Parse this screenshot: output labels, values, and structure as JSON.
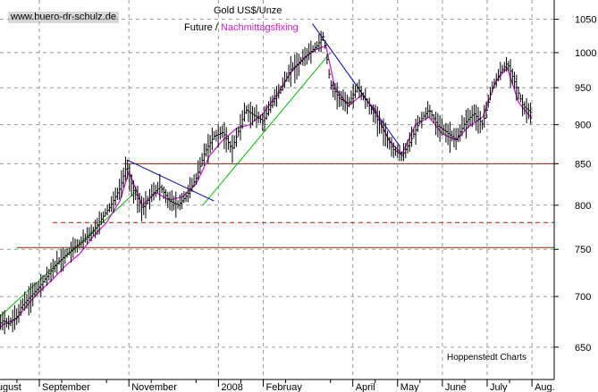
{
  "header": {
    "watermark": "www.buero-dr-schulz.de",
    "title": "Gold US$/Unze",
    "subtitle_part1": "Future /",
    "subtitle_part2": "Nachmittagsfixing"
  },
  "footer": {
    "credit": "Hoppenstedt Charts"
  },
  "colors": {
    "future": "#000000",
    "fixing": "#d020d0",
    "support": "#e00000",
    "uptrend": "#00c000",
    "downtrend": "#0000c0",
    "grid": "#999999"
  },
  "chart_data": {
    "type": "line",
    "title": "Gold US$/Unze",
    "subtitle": "Future / Nachmittagsfixing",
    "y_scale": "log",
    "ylim": [
      620,
      1080
    ],
    "y_ticks": [
      650,
      700,
      750,
      800,
      850,
      900,
      950,
      1000,
      1050
    ],
    "x_ticks": [
      {
        "label": "ugust",
        "pos": 0.0
      },
      {
        "label": "September",
        "pos": 1.0
      },
      {
        "label": "November",
        "pos": 3.0
      },
      {
        "label": "2008",
        "pos": 5.0
      },
      {
        "label": "Februay",
        "pos": 6.0
      },
      {
        "label": "April",
        "pos": 8.0
      },
      {
        "label": "May",
        "pos": 9.0
      },
      {
        "label": "June",
        "pos": 10.0
      },
      {
        "label": "July",
        "pos": 11.0
      },
      {
        "label": "Aug.",
        "pos": 12.0
      }
    ],
    "x_range": [
      -0.9,
      12.0
    ],
    "series": [
      {
        "name": "Future",
        "x": [
          -0.9,
          -0.6,
          -0.55,
          -0.5,
          -0.45,
          -0.3,
          -0.2,
          0.0,
          0.2,
          0.3,
          0.5,
          0.6,
          0.8,
          1.0,
          1.2,
          1.4,
          1.6,
          1.8,
          2.0,
          2.2,
          2.4,
          2.6,
          2.8,
          2.95,
          3.1,
          3.3,
          3.5,
          3.7,
          3.9,
          4.1,
          4.3,
          4.5,
          4.7,
          4.9,
          5.1,
          5.3,
          5.5,
          5.6,
          5.8,
          6.0,
          6.2,
          6.4,
          6.6,
          6.8,
          7.0,
          7.2,
          7.35,
          7.5,
          7.7,
          7.9,
          8.1,
          8.3,
          8.5,
          8.7,
          8.9,
          9.1,
          9.3,
          9.5,
          9.7,
          9.9,
          10.1,
          10.3,
          10.5,
          10.7,
          10.9,
          11.1,
          11.3,
          11.45,
          11.6,
          11.8,
          12.0
        ],
        "y": [
          672,
          682,
          680,
          677,
          670,
          666,
          662,
          668,
          676,
          672,
          680,
          690,
          700,
          710,
          723,
          735,
          744,
          752,
          760,
          770,
          785,
          800,
          820,
          848,
          818,
          796,
          812,
          822,
          805,
          800,
          812,
          832,
          865,
          885,
          890,
          868,
          900,
          920,
          912,
          905,
          930,
          948,
          975,
          985,
          998,
          1010,
          1025,
          955,
          935,
          928,
          950,
          932,
          912,
          890,
          868,
          860,
          880,
          905,
          920,
          898,
          890,
          880,
          902,
          915,
          900,
          948,
          972,
          985,
          960,
          925,
          915
        ]
      },
      {
        "name": "Nachmittagsfixing",
        "x": [
          -0.9,
          -0.6,
          -0.4,
          -0.2,
          0.0,
          0.2,
          0.5,
          0.8,
          1.0,
          1.3,
          1.6,
          1.9,
          2.2,
          2.5,
          2.8,
          3.0,
          3.3,
          3.6,
          3.9,
          4.2,
          4.5,
          4.8,
          5.1,
          5.4,
          5.7,
          6.0,
          6.3,
          6.6,
          6.9,
          7.2,
          7.4,
          7.6,
          7.9,
          8.2,
          8.5,
          8.8,
          9.1,
          9.4,
          9.7,
          10.0,
          10.3,
          10.6,
          10.9,
          11.2,
          11.45,
          11.7,
          12.0
        ],
        "y": [
          668,
          675,
          664,
          660,
          664,
          672,
          678,
          695,
          705,
          718,
          733,
          745,
          764,
          780,
          805,
          840,
          800,
          815,
          806,
          810,
          825,
          860,
          880,
          895,
          900,
          915,
          940,
          970,
          992,
          1005,
          1010,
          950,
          925,
          940,
          920,
          880,
          862,
          900,
          910,
          888,
          880,
          898,
          910,
          960,
          978,
          930,
          908
        ]
      }
    ],
    "support_lines": [
      {
        "value": 850,
        "from": 2.9,
        "style": "solid"
      },
      {
        "value": 780,
        "from": 1.3,
        "style": "dashed"
      },
      {
        "value": 752,
        "from": 0.5,
        "style": "solid"
      }
    ],
    "trend_lines": [
      {
        "kind": "up",
        "from": [
          -0.5,
          655
        ],
        "to": [
          3.2,
          818
        ]
      },
      {
        "kind": "up",
        "from": [
          4.65,
          800
        ],
        "to": [
          7.5,
          1000
        ]
      },
      {
        "kind": "down",
        "from": [
          2.95,
          855
        ],
        "to": [
          4.9,
          805
        ]
      },
      {
        "kind": "down",
        "from": [
          7.1,
          1043
        ],
        "to": [
          9.05,
          872
        ]
      }
    ],
    "grid": true,
    "grid_style": "dashed",
    "y_axis_side": "right",
    "legend": "none"
  }
}
